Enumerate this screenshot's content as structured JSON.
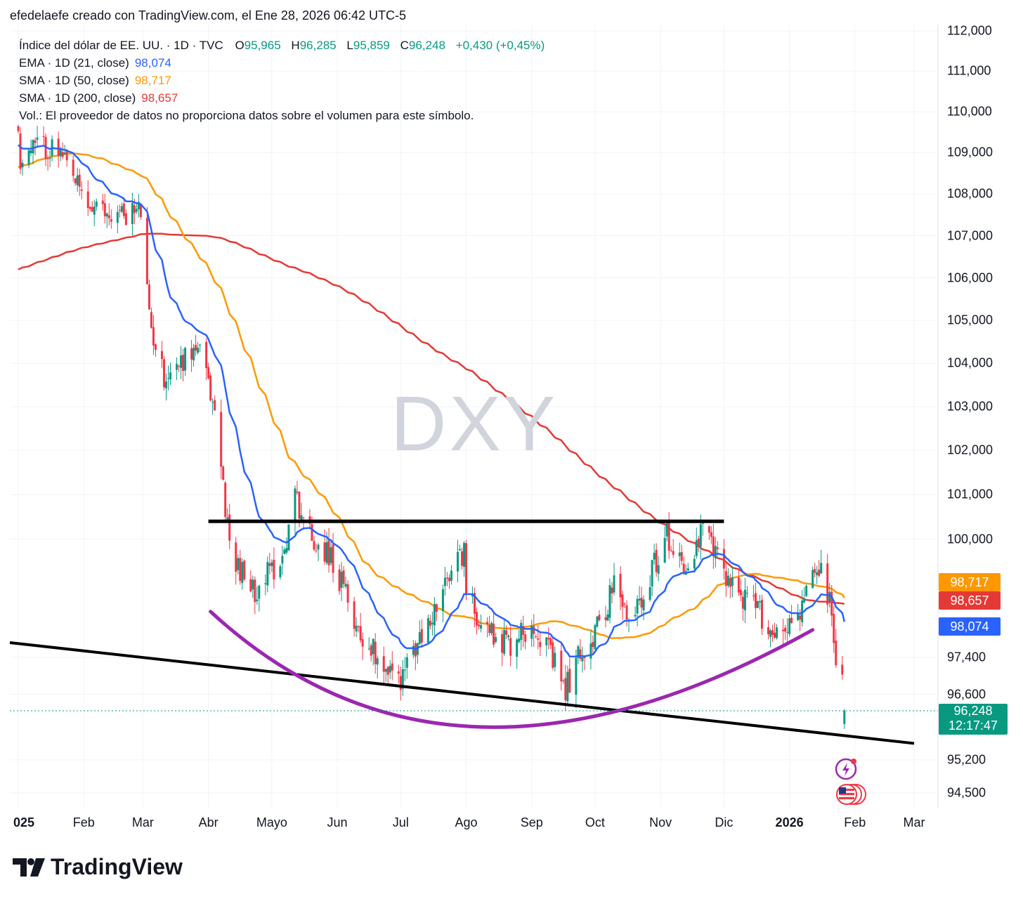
{
  "header": {
    "text": "efedelaefe creado con TradingView.com, el Ene 28, 2026 06:42 UTC-5"
  },
  "legend": {
    "symbol": "Índice del dólar de EE. UU. · 1D · TVC",
    "open_label": "O",
    "open": "95,965",
    "high_label": "H",
    "high": "96,285",
    "low_label": "L",
    "low": "95,859",
    "close_label": "C",
    "close": "96,248",
    "change": "+0,430 (+0,45%)",
    "ema_label": "EMA · 1D (21, close)",
    "ema_value": "98,074",
    "sma50_label": "SMA · 1D (50, close)",
    "sma50_value": "98,717",
    "sma200_label": "SMA · 1D (200, close)",
    "sma200_value": "98,657",
    "vol_text": "Vol.: El proveedor de datos no proporciona datos sobre el volumen para este símbolo."
  },
  "watermark": "DXY",
  "price_badges": {
    "sma50": "98,717",
    "sma200": "98,657",
    "ema": "98,074",
    "last_price": "96,248",
    "countdown": "12:17:47"
  },
  "logo": {
    "text": "TradingView"
  },
  "colors": {
    "up": "#089981",
    "down": "#f23645",
    "ema": "#2962ff",
    "sma50": "#ff9800",
    "sma200": "#e53935",
    "arc": "#9c27b0",
    "trendline": "#000000",
    "grid": "#f0f3fa"
  },
  "chart_data": {
    "type": "line",
    "title": "DXY",
    "xlabel": "",
    "ylabel": "",
    "ylim": [
      94.5,
      112.0
    ],
    "y_scale": "log",
    "grid": true,
    "x_tick_labels": [
      "025",
      "Feb",
      "Mar",
      "Abr",
      "Mayo",
      "Jun",
      "Jul",
      "Ago",
      "Sep",
      "Oct",
      "Nov",
      "Dic",
      "2026",
      "Feb",
      "Mar"
    ],
    "y_tick_labels": [
      "112,000",
      "111,000",
      "110,000",
      "109,000",
      "108,000",
      "107,000",
      "106,000",
      "105,000",
      "104,000",
      "103,000",
      "102,000",
      "101,000",
      "100,000",
      "97,400",
      "96,600",
      "95,200",
      "94,500"
    ],
    "y_tick_values": [
      112.0,
      111.0,
      110.0,
      109.0,
      108.0,
      107.0,
      106.0,
      105.0,
      104.0,
      103.0,
      102.0,
      101.0,
      100.0,
      97.4,
      96.6,
      95.2,
      94.5
    ],
    "close_series_anchors": {
      "name": "",
      "x": [
        "2025-01-02",
        "2025-01-10",
        "2025-01-20",
        "2025-02-03",
        "2025-02-12",
        "2025-02-28",
        "2025-03-04",
        "2025-03-11",
        "2025-03-27",
        "2025-04-04",
        "2025-04-11",
        "2025-04-21",
        "2025-05-06",
        "2025-05-12",
        "2025-05-20",
        "2025-05-28",
        "2025-06-12",
        "2025-06-30",
        "2025-07-14",
        "2025-07-31",
        "2025-08-01",
        "2025-08-14",
        "2025-08-22",
        "2025-09-02",
        "2025-09-17",
        "2025-09-24",
        "2025-10-01",
        "2025-10-10",
        "2025-10-17",
        "2025-11-04",
        "2025-11-14",
        "2025-11-21",
        "2025-12-01",
        "2025-12-10",
        "2025-12-18",
        "2025-12-24",
        "2026-01-05",
        "2026-01-12",
        "2026-01-16",
        "2026-01-20",
        "2026-01-23",
        "2026-01-26",
        "2026-01-27"
      ],
      "values": [
        108.8,
        109.2,
        109.0,
        107.7,
        107.5,
        107.6,
        105.0,
        103.7,
        104.4,
        102.9,
        99.9,
        98.8,
        99.6,
        101.0,
        100.0,
        99.7,
        97.9,
        96.9,
        98.1,
        99.8,
        98.7,
        97.9,
        97.7,
        98.2,
        96.7,
        97.5,
        97.9,
        99.0,
        98.1,
        100.1,
        99.3,
        100.2,
        99.3,
        98.7,
        98.4,
        97.9,
        98.3,
        99.1,
        99.3,
        98.6,
        97.4,
        97.0,
        96.25
      ]
    },
    "indicators": [
      {
        "name": "EMA · 1D (21, close)",
        "last": 98.074
      },
      {
        "name": "SMA · 1D (50, close)",
        "last": 98.717
      },
      {
        "name": "SMA · 1D (200, close)",
        "last": 98.657
      }
    ],
    "drawings": [
      {
        "type": "horizontal",
        "date_start": "2025-04-01",
        "date_end": "2025-12-01",
        "price": 100.4
      },
      {
        "type": "trendline",
        "date_start": "2025-01-01",
        "price_start": 97.7,
        "date_end": "2026-03-01",
        "price_end": 95.55
      },
      {
        "type": "arc",
        "points": [
          [
            "2025-04-02",
            98.4
          ],
          [
            "2025-08-08",
            95.9
          ],
          [
            "2026-01-12",
            98.0
          ]
        ]
      }
    ]
  }
}
